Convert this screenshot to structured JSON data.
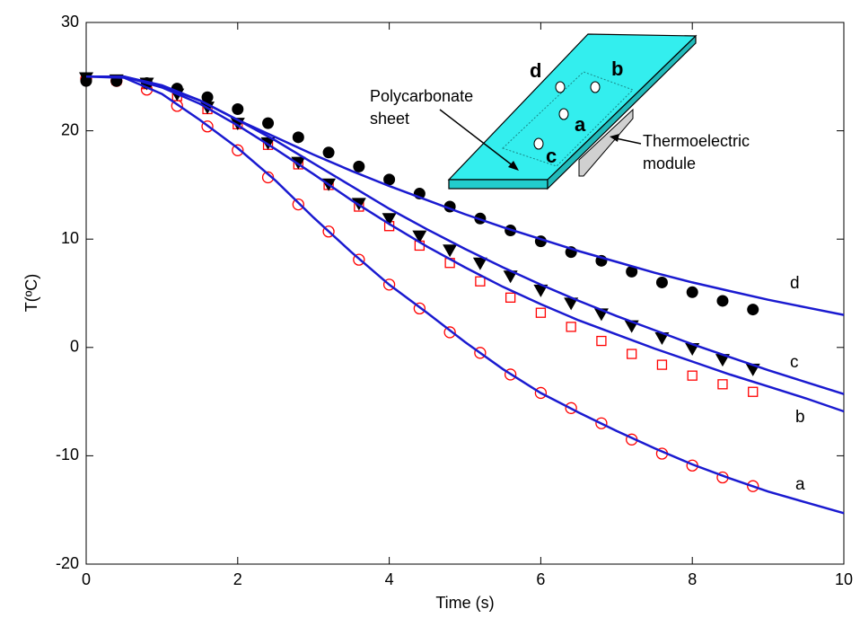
{
  "chart_data": {
    "type": "scatter",
    "xlabel": "Time (s)",
    "ylabel": "T(ºC)",
    "xlim": [
      0,
      10
    ],
    "ylim": [
      -20,
      30
    ],
    "xticks": [
      0,
      2,
      4,
      6,
      8,
      10
    ],
    "yticks": [
      -20,
      -10,
      0,
      10,
      20,
      30
    ],
    "series": [
      {
        "name": "a",
        "marker": "circle-open",
        "color": "#ff0000",
        "x": [
          0,
          0.4,
          0.8,
          1.2,
          1.6,
          2.0,
          2.4,
          2.8,
          3.2,
          3.6,
          4.0,
          4.4,
          4.8,
          5.2,
          5.6,
          6.0,
          6.4,
          6.8,
          7.2,
          7.6,
          8.0,
          8.4,
          8.8
        ],
        "values": [
          24.8,
          24.6,
          23.8,
          22.3,
          20.4,
          18.2,
          15.7,
          13.2,
          10.7,
          8.1,
          5.8,
          3.6,
          1.4,
          -0.5,
          -2.5,
          -4.2,
          -5.6,
          -7.0,
          -8.5,
          -9.8,
          -10.9,
          -12.0,
          -12.8
        ],
        "fit": {
          "color": "#1a1ad0",
          "x": [
            0,
            0.5,
            1,
            1.5,
            2,
            2.5,
            3,
            3.5,
            4,
            4.5,
            5,
            5.5,
            6,
            6.5,
            7,
            7.5,
            8,
            8.5,
            9,
            9.5,
            10
          ],
          "values": [
            25,
            24.9,
            23.4,
            21,
            18.4,
            15.4,
            12,
            8.8,
            5.8,
            3.2,
            0.5,
            -2,
            -4.2,
            -6,
            -7.7,
            -9.3,
            -10.8,
            -12.1,
            -13.3,
            -14.3,
            -15.3
          ]
        }
      },
      {
        "name": "b",
        "marker": "square-open",
        "color": "#ff0000",
        "x": [
          0,
          0.4,
          0.8,
          1.2,
          1.6,
          2.0,
          2.4,
          2.8,
          3.2,
          3.6,
          4.0,
          4.4,
          4.8,
          5.2,
          5.6,
          6.0,
          6.4,
          6.8,
          7.2,
          7.6,
          8.0,
          8.4,
          8.8
        ],
        "values": [
          24.9,
          24.7,
          24.3,
          23.2,
          22.0,
          20.6,
          18.7,
          16.9,
          15.0,
          13.0,
          11.2,
          9.4,
          7.8,
          6.1,
          4.6,
          3.2,
          1.9,
          0.6,
          -0.6,
          -1.6,
          -2.6,
          -3.4,
          -4.1
        ],
        "fit": {
          "color": "#1a1ad0",
          "x": [
            0,
            0.5,
            1,
            1.5,
            2,
            2.5,
            3,
            3.5,
            4,
            4.5,
            5,
            5.5,
            6,
            6.5,
            7,
            7.5,
            8,
            8.5,
            9,
            9.5,
            10
          ],
          "values": [
            25,
            25,
            24,
            22.5,
            20.5,
            18.3,
            16,
            13.6,
            11.4,
            9.3,
            7.4,
            5.6,
            4,
            2.5,
            1.2,
            -0.1,
            -1.3,
            -2.5,
            -3.6,
            -4.7,
            -5.9
          ]
        }
      },
      {
        "name": "c",
        "marker": "triangle-down",
        "color": "#000000",
        "x": [
          0,
          0.4,
          0.8,
          1.2,
          1.6,
          2.0,
          2.4,
          2.8,
          3.2,
          3.6,
          4.0,
          4.4,
          4.8,
          5.2,
          5.6,
          6.0,
          6.4,
          6.8,
          7.2,
          7.6,
          8.0,
          8.4,
          8.8
        ],
        "values": [
          24.9,
          24.7,
          24.4,
          23.4,
          22.2,
          20.7,
          18.9,
          17.1,
          15.1,
          13.3,
          11.9,
          10.3,
          9.0,
          7.8,
          6.6,
          5.3,
          4.1,
          3.1,
          2.0,
          0.9,
          -0.1,
          -1.1,
          -2.0
        ],
        "fit": {
          "color": "#1a1ad0",
          "x": [
            0,
            0.5,
            1,
            1.5,
            2,
            2.5,
            3,
            3.5,
            4,
            4.5,
            5,
            5.5,
            6,
            6.5,
            7,
            7.5,
            8,
            8.5,
            9,
            9.5,
            10
          ],
          "values": [
            25,
            25,
            24.1,
            22.8,
            21,
            19.1,
            17,
            14.9,
            12.8,
            10.9,
            9.1,
            7.4,
            5.8,
            4.3,
            2.9,
            1.6,
            0.3,
            -0.9,
            -2.1,
            -3.2,
            -4.3
          ]
        }
      },
      {
        "name": "d",
        "marker": "circle-filled",
        "color": "#000000",
        "x": [
          0,
          0.4,
          0.8,
          1.2,
          1.6,
          2.0,
          2.4,
          2.8,
          3.2,
          3.6,
          4.0,
          4.4,
          4.8,
          5.2,
          5.6,
          6.0,
          6.4,
          6.8,
          7.2,
          7.6,
          8.0,
          8.4,
          8.8
        ],
        "values": [
          24.6,
          24.6,
          24.4,
          23.9,
          23.1,
          22.0,
          20.7,
          19.4,
          18.0,
          16.7,
          15.5,
          14.2,
          13.0,
          11.9,
          10.8,
          9.8,
          8.8,
          8.0,
          7.0,
          6.0,
          5.1,
          4.3,
          3.5
        ],
        "fit": {
          "color": "#1a1ad0",
          "x": [
            0,
            0.5,
            1,
            1.5,
            2,
            2.5,
            3,
            3.5,
            4,
            4.5,
            5,
            5.5,
            6,
            6.5,
            7,
            7.5,
            8,
            8.5,
            9,
            9.5,
            10
          ],
          "values": [
            25,
            25,
            24.2,
            22.8,
            21,
            19.4,
            17.8,
            16.3,
            14.9,
            13.6,
            12.3,
            11.1,
            10,
            8.9,
            7.9,
            6.9,
            6,
            5.2,
            4.4,
            3.7,
            3.0
          ]
        }
      }
    ],
    "inset": {
      "sheet_label": [
        "Polycarbonate",
        "sheet"
      ],
      "module_label": [
        "Thermoelectric",
        "module"
      ],
      "points": [
        "d",
        "b",
        "a",
        "c"
      ]
    }
  }
}
